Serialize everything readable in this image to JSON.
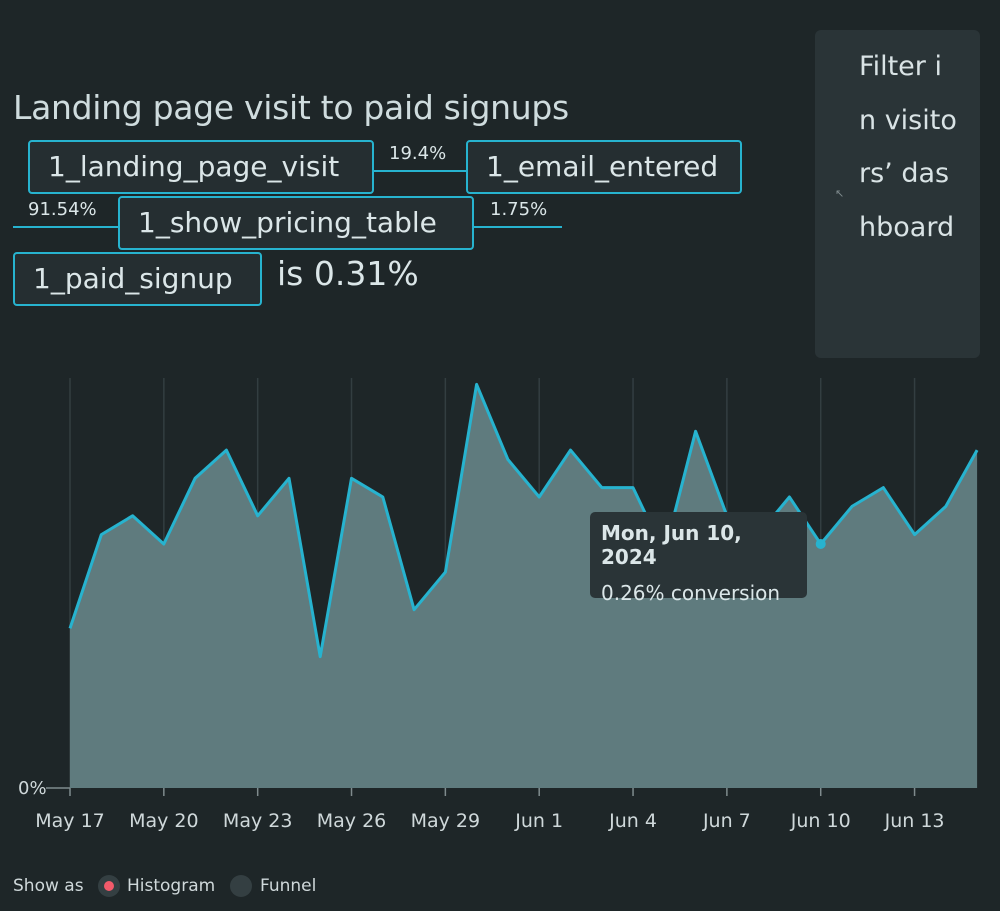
{
  "title": "Landing page visit to paid signups",
  "funnel": {
    "steps": [
      "1_landing_page_visit",
      "1_email_entered",
      "1_show_pricing_table",
      "1_paid_signup"
    ],
    "step_rates": [
      "19.4%",
      "91.54%",
      "1.75%"
    ],
    "result_text": "is 0.31%"
  },
  "filter_panel": {
    "text": "Filter in visitors’ dashboard"
  },
  "tooltip": {
    "date": "Mon, Jun 10, 2024",
    "value": "0.26% conversion"
  },
  "controls": {
    "show_as_label": "Show as",
    "options": [
      "Histogram",
      "Funnel"
    ],
    "selected": "Histogram"
  },
  "colors": {
    "accent": "#27b3cf",
    "area_fill": "#5f7b7e",
    "radio_selected": "#f25a6a"
  },
  "chart_data": {
    "type": "area",
    "y_axis_label": "0%",
    "x_tick_labels": [
      "May 17",
      "May 20",
      "May 23",
      "May 26",
      "May 29",
      "Jun 1",
      "Jun 4",
      "Jun 7",
      "Jun 10",
      "Jun 13"
    ],
    "x": [
      "May 17",
      "May 18",
      "May 19",
      "May 20",
      "May 21",
      "May 22",
      "May 23",
      "May 24",
      "May 25",
      "May 26",
      "May 27",
      "May 28",
      "May 29",
      "May 30",
      "May 31",
      "Jun 1",
      "Jun 2",
      "Jun 3",
      "Jun 4",
      "Jun 5",
      "Jun 6",
      "Jun 7",
      "Jun 8",
      "Jun 9",
      "Jun 10",
      "Jun 11",
      "Jun 12",
      "Jun 13",
      "Jun 14",
      "Jun 15"
    ],
    "values": [
      0.17,
      0.27,
      0.29,
      0.26,
      0.33,
      0.36,
      0.29,
      0.33,
      0.14,
      0.33,
      0.31,
      0.19,
      0.23,
      0.43,
      0.35,
      0.31,
      0.36,
      0.32,
      0.32,
      0.25,
      0.38,
      0.29,
      0.27,
      0.31,
      0.26,
      0.3,
      0.32,
      0.27,
      0.3,
      0.36
    ],
    "highlight": {
      "x": "Jun 10",
      "value": 0.26
    },
    "ylim": [
      0,
      0.44
    ],
    "grid": "vertical"
  }
}
